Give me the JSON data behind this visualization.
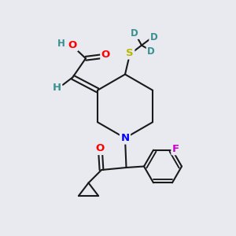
{
  "bg_color": "#e8eaf0",
  "bond_color": "#1a1a1a",
  "bond_width": 1.5,
  "atom_colors": {
    "O": "#ff0000",
    "S": "#b8b800",
    "N": "#0000ff",
    "F": "#cc00cc",
    "D": "#3a8f8f",
    "H": "#3a8f8f",
    "C": "#1a1a1a"
  },
  "font_size": 9.5,
  "font_size_small": 8.5
}
